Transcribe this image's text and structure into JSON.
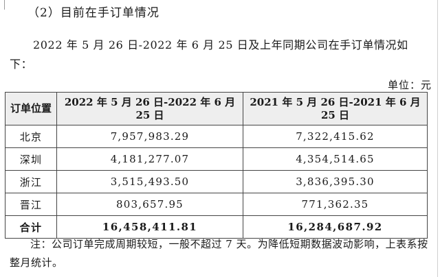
{
  "heading": "（2）目前在手订单情况",
  "intro": "2022 年 5 月 26 日-2022 年 6 月 25 日及上年同期公司在手订单情况如下：",
  "unit": "单位：元",
  "table": {
    "headers": [
      "订单位置",
      "2022 年 5 月 26 日-2022 年 6 月 25 日",
      "2021 年 5 月 26 日-2021 年 6 月 25 日"
    ],
    "rows": [
      {
        "location": "北京",
        "current": "7,957,983.29",
        "previous": "7,322,415.62"
      },
      {
        "location": "深圳",
        "current": "4,181,277.07",
        "previous": "4,354,514.65"
      },
      {
        "location": "浙江",
        "current": "3,515,493.50",
        "previous": "3,836,395.30"
      },
      {
        "location": "晋江",
        "current": "803,657.95",
        "previous": "771,362.35"
      }
    ],
    "total": {
      "label": "合计",
      "current": "16,458,411.81",
      "previous": "16,284,687.92"
    }
  },
  "note": "注：公司订单完成周期较短，一般不超过 7 天。为降低短期数据波动影响，上表系按整月统计。"
}
